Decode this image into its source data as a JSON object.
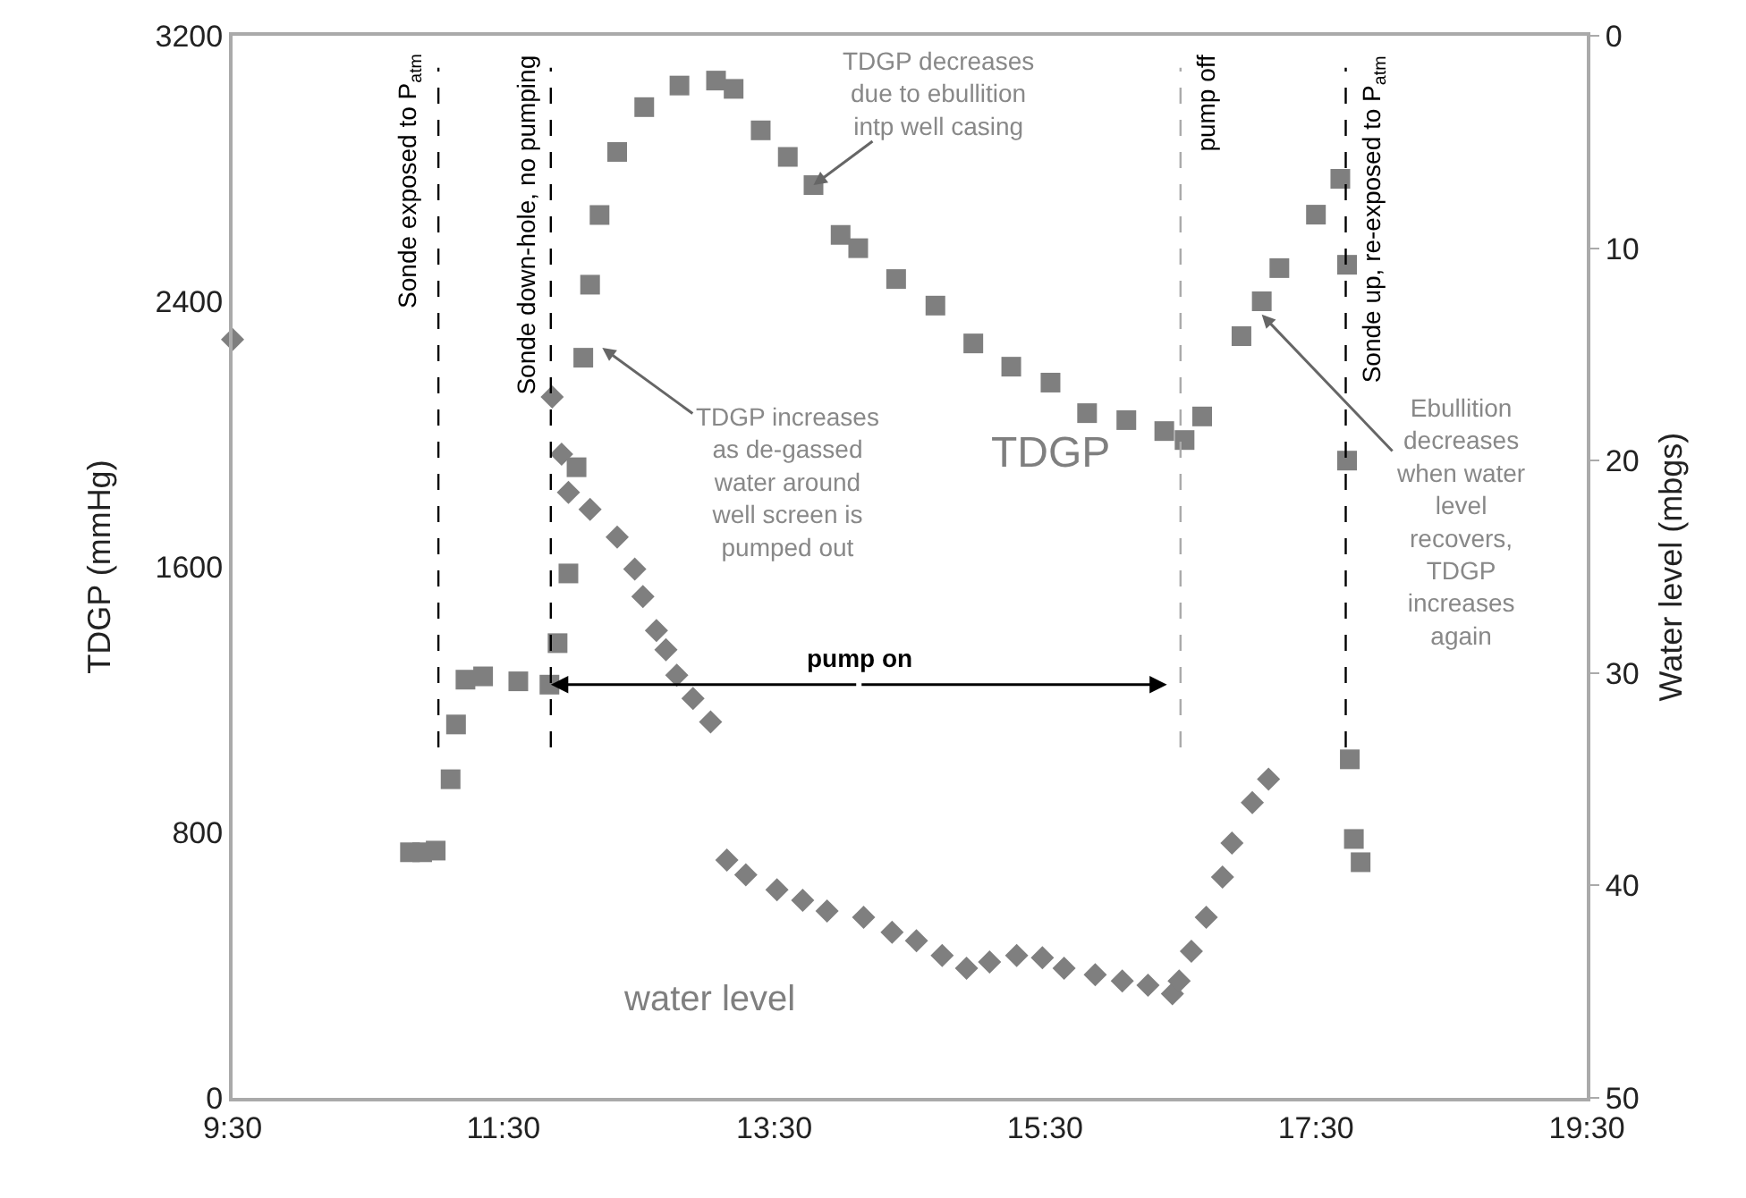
{
  "chart_data": {
    "type": "scatter",
    "ylabel": "TDGP (mmHg)",
    "y2label": "Water level (mbgs)",
    "xlim": [
      9.5,
      19.5
    ],
    "xticks": [
      {
        "value": 9.5,
        "label": "9:30"
      },
      {
        "value": 11.5,
        "label": "11:30"
      },
      {
        "value": 13.5,
        "label": "13:30"
      },
      {
        "value": 15.5,
        "label": "15:30"
      },
      {
        "value": 17.5,
        "label": "17:30"
      },
      {
        "value": 19.5,
        "label": "19:30"
      }
    ],
    "ylim": [
      0,
      3200
    ],
    "yticks": [
      0,
      800,
      1600,
      2400,
      3200
    ],
    "y2lim": [
      50,
      0
    ],
    "y2ticks": [
      0,
      10,
      20,
      30,
      40,
      50
    ],
    "grid": false,
    "legend": false,
    "series": [
      {
        "name": "TDGP",
        "color": "#7f7f7f",
        "marker": "square",
        "x": [
          10.81,
          10.9,
          11.0,
          11.11,
          11.15,
          11.22,
          11.35,
          11.61,
          11.84,
          11.9,
          11.98,
          12.04,
          12.09,
          12.14,
          12.21,
          12.34,
          12.54,
          12.8,
          13.07,
          13.2,
          13.4,
          13.6,
          13.79,
          13.99,
          14.12,
          14.4,
          14.69,
          14.97,
          15.25,
          15.54,
          15.81,
          16.1,
          16.38,
          16.53,
          16.66,
          16.95,
          17.1,
          17.23,
          17.5,
          17.68,
          17.73,
          17.73,
          17.75,
          17.78,
          17.83
        ],
        "values": [
          740,
          740,
          745,
          960,
          1125,
          1260,
          1270,
          1255,
          1245,
          1370,
          1580,
          1900,
          2230,
          2450,
          2660,
          2850,
          2985,
          3050,
          3065,
          3040,
          2915,
          2835,
          2750,
          2600,
          2560,
          2467,
          2387,
          2273,
          2203,
          2155,
          2063,
          2042,
          2009,
          1982,
          2053,
          2295,
          2400,
          2500,
          2661,
          2769,
          2510,
          1920,
          1020,
          780,
          710
        ]
      },
      {
        "name": "water level",
        "color": "#7f7f7f",
        "marker": "diamond",
        "axis": "y2",
        "x": [
          9.5,
          11.86,
          11.93,
          11.98,
          12.14,
          12.34,
          12.47,
          12.53,
          12.63,
          12.7,
          12.78,
          12.9,
          13.03,
          13.15,
          13.29,
          13.52,
          13.71,
          13.89,
          14.16,
          14.37,
          14.55,
          14.74,
          14.92,
          15.09,
          15.29,
          15.48,
          15.64,
          15.87,
          16.07,
          16.26,
          16.44,
          16.49,
          16.58,
          16.69,
          16.81,
          16.88,
          17.03,
          17.15
        ],
        "values": [
          14.3,
          17.0,
          19.7,
          21.5,
          22.3,
          23.6,
          25.1,
          26.4,
          28.0,
          28.9,
          30.1,
          31.2,
          32.3,
          38.8,
          39.5,
          40.2,
          40.7,
          41.2,
          41.5,
          42.2,
          42.6,
          43.3,
          43.9,
          43.6,
          43.3,
          43.4,
          43.9,
          44.2,
          44.5,
          44.7,
          45.1,
          44.5,
          43.1,
          41.5,
          39.6,
          38.0,
          36.1,
          35.0
        ]
      }
    ],
    "ref_lines": [
      {
        "axis": "x",
        "value": 11.02,
        "label": "Sonde exposed to P$_{atm}$",
        "color": "#000000",
        "line_style": "dashed"
      },
      {
        "axis": "x",
        "value": 11.85,
        "label": "Sonde down-hole, no pumping",
        "color": "#000000",
        "line_style": "dashed"
      },
      {
        "axis": "x",
        "value": 16.5,
        "label": "pump off",
        "color": "#aaaaaa",
        "line_style": "dashed"
      },
      {
        "axis": "x",
        "value": 17.72,
        "label": "Sonde up, re-exposed to P$_{atm}$",
        "color": "#000000",
        "line_style": "dashed"
      }
    ],
    "annotations": [
      {
        "text": "pump on",
        "x": 11.85,
        "y": 1245
      },
      {
        "text": "TDGP decreases due to ebullition intp well casing",
        "x": 13.79,
        "y": 2750
      },
      {
        "text": "TDGP increases as de-gassed water around well screen is pumped out",
        "x": 12.23,
        "y": 2260
      },
      {
        "text": "Ebullition decreases when water level recovers, TDGP increases again",
        "x": 17.1,
        "y": 2360
      }
    ]
  }
}
